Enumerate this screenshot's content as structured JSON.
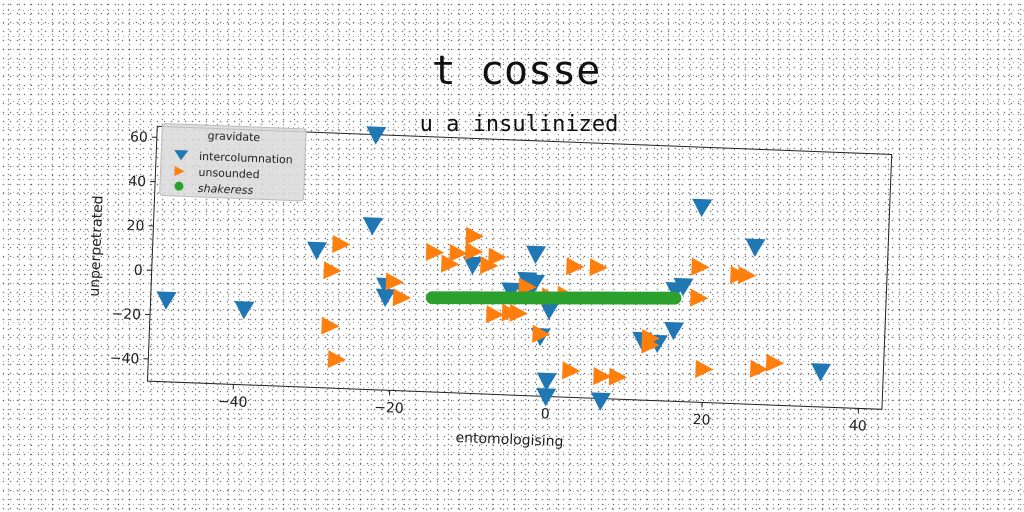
{
  "chart_data": {
    "type": "scatter",
    "title": "t cosse",
    "subtitle": "u a insulinized",
    "xlabel": "entomologising",
    "ylabel": "unperpetrated",
    "xlim": [
      -51,
      43
    ],
    "ylim": [
      -50,
      65
    ],
    "xticks": [
      -40,
      -20,
      0,
      20,
      40
    ],
    "yticks": [
      -40,
      -20,
      0,
      20,
      40,
      60
    ],
    "grid": false,
    "legend": {
      "title": "gravidate",
      "placement": "top-left"
    },
    "series": [
      {
        "name": "intercolumnation",
        "marker": "triangle-down",
        "color": "#1f77b4",
        "points": [
          [
            -49,
            -13
          ],
          [
            -39,
            -16
          ],
          [
            -23,
            65
          ],
          [
            -23,
            24
          ],
          [
            -30,
            12
          ],
          [
            -21,
            -3
          ],
          [
            -21,
            -8
          ],
          [
            -10,
            8
          ],
          [
            -2,
            14
          ],
          [
            -3,
            2
          ],
          [
            -2,
            1
          ],
          [
            -3,
            -5
          ],
          [
            -5,
            -3
          ],
          [
            0,
            -11
          ],
          [
            -1,
            -23
          ],
          [
            0,
            -43
          ],
          [
            0,
            -50
          ],
          [
            7,
            -51
          ],
          [
            12,
            -23
          ],
          [
            14,
            -24
          ],
          [
            16,
            -18
          ],
          [
            16,
            0
          ],
          [
            17,
            2
          ],
          [
            19,
            38
          ],
          [
            26,
            21
          ],
          [
            35,
            -34
          ]
        ]
      },
      {
        "name": "unsounded",
        "marker": "triangle-right",
        "color": "#ff7f0e",
        "points": [
          [
            -27,
            15
          ],
          [
            -28,
            3
          ],
          [
            -28,
            -22
          ],
          [
            -27,
            -37
          ],
          [
            -20,
            -1
          ],
          [
            -19,
            -8
          ],
          [
            -15,
            13
          ],
          [
            -13,
            8
          ],
          [
            -12,
            13
          ],
          [
            -10,
            21
          ],
          [
            -10,
            14
          ],
          [
            -8,
            8
          ],
          [
            -7,
            12
          ],
          [
            -7,
            -14
          ],
          [
            -5,
            -13
          ],
          [
            -4,
            -13
          ],
          [
            -3,
            -1
          ],
          [
            -1,
            -22
          ],
          [
            0,
            -5
          ],
          [
            2,
            -4
          ],
          [
            3,
            9
          ],
          [
            3,
            -38
          ],
          [
            6,
            9
          ],
          [
            7,
            -40
          ],
          [
            9,
            -40
          ],
          [
            13,
            -22
          ],
          [
            13,
            -25
          ],
          [
            19,
            -3
          ],
          [
            19,
            11
          ],
          [
            20,
            -35
          ],
          [
            24,
            8
          ],
          [
            25,
            8
          ],
          [
            27,
            -34
          ],
          [
            29,
            -31
          ]
        ]
      },
      {
        "name": "shakeress",
        "marker": "circle",
        "color": "#2ca02c",
        "x_range": [
          -15,
          16
        ],
        "y_range": [
          -7.5,
          -3.5
        ]
      }
    ]
  }
}
